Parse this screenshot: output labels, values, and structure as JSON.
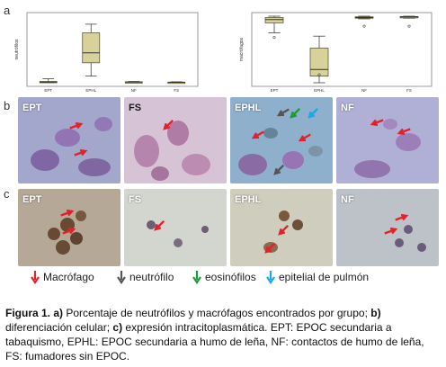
{
  "panels": {
    "a": {
      "letter": "a"
    },
    "b": {
      "letter": "b"
    },
    "c": {
      "letter": "c"
    }
  },
  "chart_data": [
    {
      "type": "box",
      "ylabel": "neutrófilos",
      "categories": [
        "EPT",
        "EPHL",
        "NF",
        "FS"
      ],
      "boxes": [
        {
          "min": 0,
          "q1": 0.5,
          "median": 1,
          "q3": 2,
          "max": 6
        },
        {
          "min": 10,
          "q1": 30,
          "median": 45,
          "q3": 75,
          "max": 88
        },
        {
          "min": 0,
          "q1": 0.5,
          "median": 1,
          "q3": 1.5,
          "max": 2
        },
        {
          "min": 0,
          "q1": 0.3,
          "median": 0.6,
          "q3": 1,
          "max": 1.5
        }
      ],
      "ylim": [
        0,
        100
      ]
    },
    {
      "type": "box",
      "ylabel": "macrófagos",
      "categories": [
        "EPT",
        "EPHL",
        "NF",
        "FS"
      ],
      "boxes": [
        {
          "min": 75,
          "q1": 90,
          "median": 95,
          "q3": 98,
          "max": 100,
          "outliers": [
            68
          ]
        },
        {
          "min": 0,
          "q1": 10,
          "median": 20,
          "q3": 52,
          "max": 70,
          "outliers": [
            12
          ]
        },
        {
          "min": 96,
          "q1": 97,
          "median": 98,
          "q3": 99,
          "max": 100,
          "outliers": [
            85
          ]
        },
        {
          "min": 97,
          "q1": 98,
          "median": 99,
          "q3": 99.5,
          "max": 100,
          "outliers": [
            85
          ]
        }
      ],
      "ylim": [
        0,
        100
      ]
    }
  ],
  "micrographs_b": [
    {
      "label": "EPT"
    },
    {
      "label": "FS"
    },
    {
      "label": "EPHL"
    },
    {
      "label": "NF"
    }
  ],
  "micrographs_c": [
    {
      "label": "EPT"
    },
    {
      "label": "FS"
    },
    {
      "label": "EPHL"
    },
    {
      "label": "NF"
    }
  ],
  "legend": [
    {
      "label": "Macrófago",
      "color": "#e0232a"
    },
    {
      "label": "neutrófilo",
      "color": "#555555"
    },
    {
      "label": "eosinófilos",
      "color": "#1f9a3a"
    },
    {
      "label": "epitelial de pulmón",
      "color": "#1ea6e6"
    }
  ],
  "caption": {
    "title": "Figura 1.",
    "a_letter": "a)",
    "a_text": " Porcentaje de neutrófilos y macrófagos encontrados por grupo; ",
    "b_letter": "b)",
    "b_text": " diferenciación celular; ",
    "c_letter": "c)",
    "c_text": " expresión intracitoplasmática. EPT: EPOC secundaria a tabaquismo, EPHL: EPOC secundaria a humo de leña, NF: contactos de humo de leña, FS: fumadores sin EPOC."
  }
}
